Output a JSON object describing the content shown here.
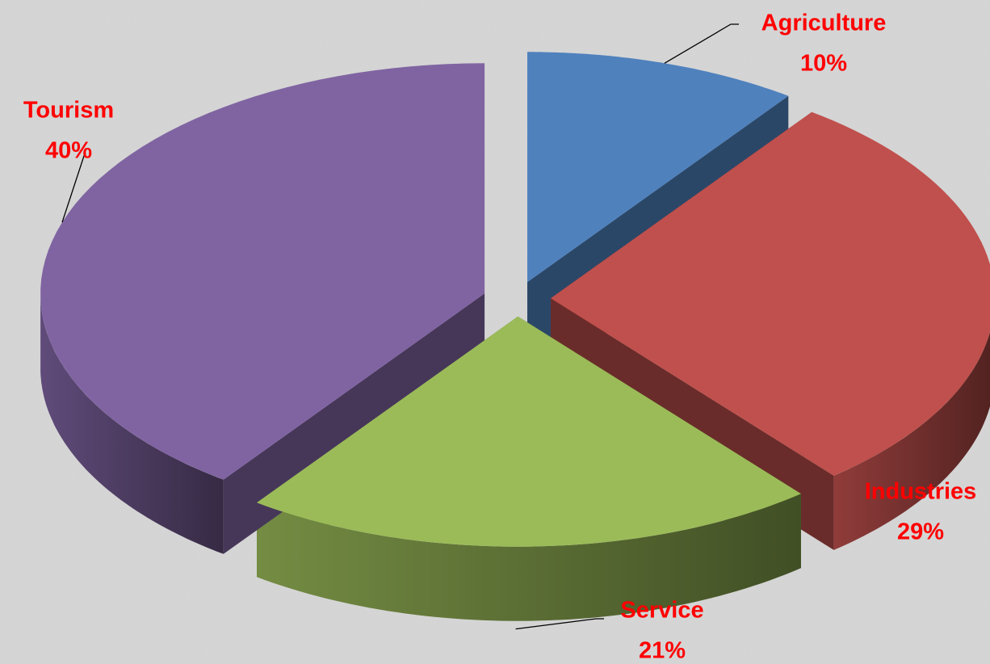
{
  "chart_data": {
    "type": "pie",
    "categories": [
      "Agriculture",
      "Industries",
      "Service",
      "Tourism"
    ],
    "values": [
      10,
      29,
      21,
      40
    ],
    "value_labels": [
      "10%",
      "29%",
      "21%",
      "40%"
    ],
    "colors": [
      "#4f81bd",
      "#c0504d",
      "#9bbb59",
      "#8064a2"
    ],
    "label_color": "#ff0000"
  }
}
